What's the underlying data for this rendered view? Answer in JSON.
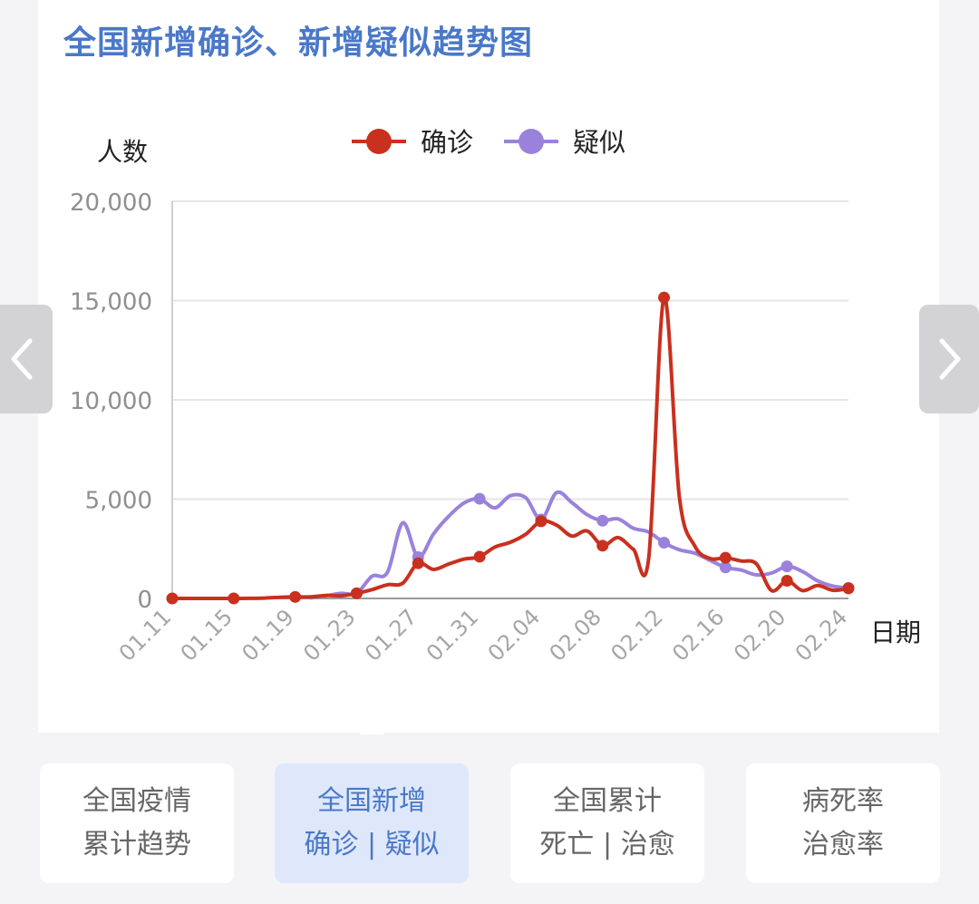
{
  "header": {
    "title": "全国新增确诊、新增疑似趋势图"
  },
  "nav": {
    "prev_icon": "chevron-left-icon",
    "next_icon": "chevron-right-icon"
  },
  "tabs": [
    {
      "line1": "全国疫情",
      "line2": "累计趋势",
      "active": false
    },
    {
      "line1": "全国新增",
      "line2": "确诊 | 疑似",
      "active": true
    },
    {
      "line1": "全国累计",
      "line2": "死亡 | 治愈",
      "active": false
    },
    {
      "line1": "病死率",
      "line2": "治愈率",
      "active": false
    }
  ],
  "chart_data": {
    "type": "line",
    "title": "",
    "ylabel": "人数",
    "xlabel": "日期",
    "ylim": [
      0,
      20000
    ],
    "yticks": [
      0,
      5000,
      10000,
      15000,
      20000
    ],
    "ytick_labels": [
      "0",
      "5,000",
      "10,000",
      "15,000",
      "20,000"
    ],
    "xtick_labels": [
      "01.11",
      "01.15",
      "01.19",
      "01.23",
      "01.27",
      "01.31",
      "02.04",
      "02.08",
      "02.12",
      "02.16",
      "02.20",
      "02.24"
    ],
    "legend_position": "top",
    "grid": true,
    "series": [
      {
        "name": "确诊",
        "color": "#c9301e",
        "x": [
          "01.11",
          "01.12",
          "01.13",
          "01.14",
          "01.15",
          "01.16",
          "01.17",
          "01.18",
          "01.19",
          "01.20",
          "01.21",
          "01.22",
          "01.23",
          "01.24",
          "01.25",
          "01.26",
          "01.27",
          "01.28",
          "01.29",
          "01.30",
          "01.31",
          "02.01",
          "02.02",
          "02.03",
          "02.04",
          "02.05",
          "02.06",
          "02.07",
          "02.08",
          "02.09",
          "02.10",
          "02.11",
          "02.12",
          "02.13",
          "02.14",
          "02.15",
          "02.16",
          "02.17",
          "02.18",
          "02.19",
          "02.20",
          "02.21",
          "02.22",
          "02.23",
          "02.24"
        ],
        "values": [
          0,
          0,
          0,
          0,
          0,
          4,
          17,
          59,
          77,
          77,
          149,
          131,
          259,
          444,
          688,
          769,
          1771,
          1459,
          1737,
          1982,
          2102,
          2590,
          2829,
          3235,
          3887,
          3694,
          3143,
          3399,
          2656,
          3062,
          2478,
          2015,
          15152,
          5090,
          2641,
          2009,
          2048,
          1886,
          1749,
          394,
          889,
          397,
          648,
          409,
          508
        ]
      },
      {
        "name": "疑似",
        "color": "#9a82dc",
        "x": [
          "01.20",
          "01.21",
          "01.22",
          "01.23",
          "01.24",
          "01.25",
          "01.26",
          "01.27",
          "01.28",
          "01.29",
          "01.30",
          "01.31",
          "02.01",
          "02.02",
          "02.03",
          "02.04",
          "02.05",
          "02.06",
          "02.07",
          "02.08",
          "02.09",
          "02.10",
          "02.11",
          "02.12",
          "02.13",
          "02.14",
          "02.15",
          "02.16",
          "02.17",
          "02.18",
          "02.19",
          "02.20",
          "02.21",
          "02.22",
          "02.23",
          "02.24"
        ],
        "values": [
          27,
          137,
          257,
          257,
          1118,
          1309,
          3806,
          2077,
          3248,
          4148,
          4812,
          5019,
          4562,
          5173,
          5072,
          3971,
          5328,
          4833,
          4214,
          3916,
          4008,
          3536,
          3342,
          2807,
          2450,
          2277,
          1918,
          1563,
          1432,
          1185,
          1277,
          1614,
          1361,
          882,
          620,
          530
        ]
      }
    ]
  }
}
